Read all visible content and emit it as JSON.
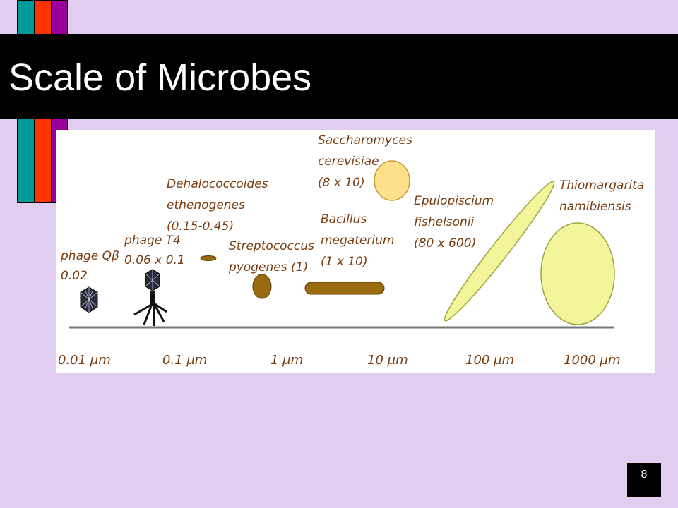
{
  "slide": {
    "title": "Scale of Microbes",
    "page_number": "8"
  },
  "colors": {
    "background": "#e1cdf0",
    "stripe_teal": "#00999a",
    "stripe_red": "#ff3300",
    "stripe_purple": "#990099",
    "organism_brown": "#9a6a10",
    "yeast_fill": "#ffe08a",
    "large_fill": "#f3f59a",
    "label_color": "#7a3c10"
  },
  "diagram": {
    "axis_ticks": [
      "0.01 μm",
      "0.1 μm",
      "1 μm",
      "10 μm",
      "100 μm",
      "1000 μm"
    ],
    "organisms": [
      {
        "id": "phage-qb",
        "lines": [
          "phage Qβ",
          "0.02"
        ],
        "icon": "icosahedral-virus-icon"
      },
      {
        "id": "phage-t4",
        "lines": [
          "phage T4",
          "0.06 x 0.1"
        ],
        "icon": "bacteriophage-icon"
      },
      {
        "id": "dehalococcoides",
        "lines": [
          "Dehalococcoides",
          "ethenogenes",
          "(0.15-0.45)"
        ],
        "icon": "rod-cell-icon"
      },
      {
        "id": "streptococcus",
        "lines": [
          "Streptococcus",
          "pyogenes (1)"
        ],
        "icon": "coccus-cell-icon"
      },
      {
        "id": "saccharomyces",
        "lines": [
          "Saccharomyces",
          "cerevisiae",
          "(8 x 10)"
        ],
        "icon": "yeast-cell-icon"
      },
      {
        "id": "bacillus",
        "lines": [
          "Bacillus",
          "megaterium",
          "(1 x 10)"
        ],
        "icon": "rod-cell-icon"
      },
      {
        "id": "epulopiscium",
        "lines": [
          "Epulopiscium",
          "fishelsonii",
          "(80 x 600)"
        ],
        "icon": "elongated-cell-icon"
      },
      {
        "id": "thiomargarita",
        "lines": [
          "Thiomargarita",
          "namibiensis"
        ],
        "icon": "giant-sphere-cell-icon"
      }
    ]
  }
}
